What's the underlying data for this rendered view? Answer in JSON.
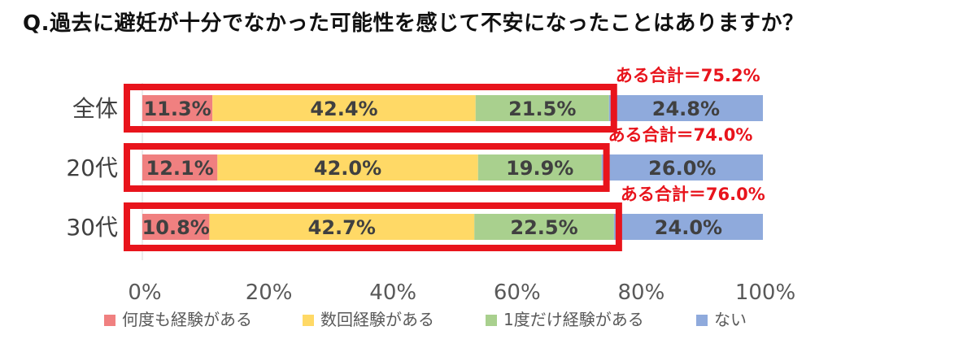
{
  "chart_data": {
    "type": "bar",
    "orientation": "horizontal",
    "stacked": true,
    "title": "Q.過去に避妊が十分でなかった可能性を感じて不安になったことはありますか？",
    "categories": [
      "全体",
      "20代",
      "30代"
    ],
    "series": [
      {
        "name": "何度も経験がある",
        "color": "#f08080",
        "values": [
          11.3,
          12.1,
          10.8
        ],
        "labels": [
          "11.3%",
          "12.1%",
          "10.8%"
        ]
      },
      {
        "name": "数回経験がある",
        "color": "#ffd966",
        "values": [
          42.4,
          42.0,
          42.7
        ],
        "labels": [
          "42.4%",
          "42.0%",
          "42.7%"
        ]
      },
      {
        "name": "1度だけ経験がある",
        "color": "#a9d08e",
        "values": [
          21.5,
          19.9,
          22.5
        ],
        "labels": [
          "21.5%",
          "19.9%",
          "22.5%"
        ]
      },
      {
        "name": "ない",
        "color": "#8faadc",
        "values": [
          24.8,
          26.0,
          24.0
        ],
        "labels": [
          "24.8%",
          "26.0%",
          "24.0%"
        ]
      }
    ],
    "xlim": [
      0,
      100
    ],
    "xticks": [
      "0%",
      "20%",
      "40%",
      "60%",
      "80%",
      "100%"
    ],
    "legend_position": "bottom",
    "grid": false,
    "annotations": [
      {
        "category": "全体",
        "text": "ある合計＝75.2%",
        "value": 75.2
      },
      {
        "category": "20代",
        "text": "ある合計＝74.0%",
        "value": 74.0
      },
      {
        "category": "30代",
        "text": "ある合計＝76.0%",
        "value": 76.0
      }
    ],
    "highlight_color": "#e8141c"
  }
}
